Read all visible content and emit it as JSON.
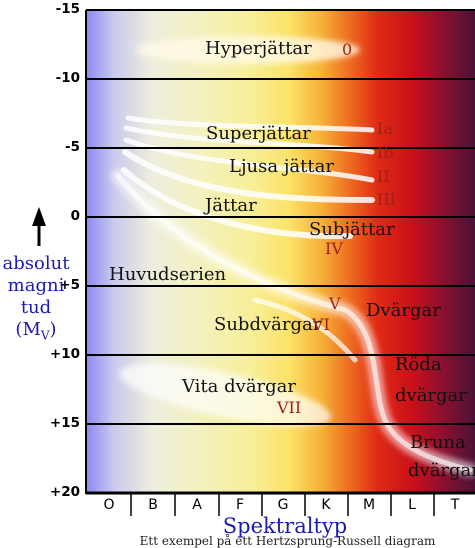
{
  "y_ticks": [
    "-15",
    "-10",
    "-5",
    "0",
    "+5",
    "+10",
    "+15",
    "+20"
  ],
  "spectral_classes": [
    "O",
    "B",
    "A",
    "F",
    "G",
    "K",
    "M",
    "L",
    "T"
  ],
  "x_axis_title": "Spektraltyp",
  "y_axis_title": [
    "absolut",
    "magni",
    "tud",
    "(M",
    "V",
    ")"
  ],
  "caption": "Ett exempel på ett Hertzsprung-Russell diagram",
  "regions": {
    "hyperjattar": "Hyperjättar",
    "superjattar": "Superjättar",
    "ljusa_jattar": "Ljusa jättar",
    "jattar": "Jättar",
    "subjattar": "Subjättar",
    "huvudserien": "Huvudserien",
    "dvargar": "Dvärgar",
    "subdvargar": "Subdvärgar",
    "roda_dvargar_1": "Röda",
    "roda_dvargar_2": "dvärgar",
    "vita_dvargar": "Vita dvärgar",
    "bruna_dvargar_1": "Bruna",
    "bruna_dvargar_2": "dvärgar"
  },
  "luminosity_classes": {
    "c0": "0",
    "c1a": "Ia",
    "c1b": "Ib",
    "c2": "II",
    "c3": "III",
    "c4": "IV",
    "c5": "V",
    "c6": "VI",
    "c7": "VII"
  },
  "colors": {
    "label_text": "#111111",
    "class_text": "#a0211a",
    "axis_title": "#1b1bb0"
  }
}
